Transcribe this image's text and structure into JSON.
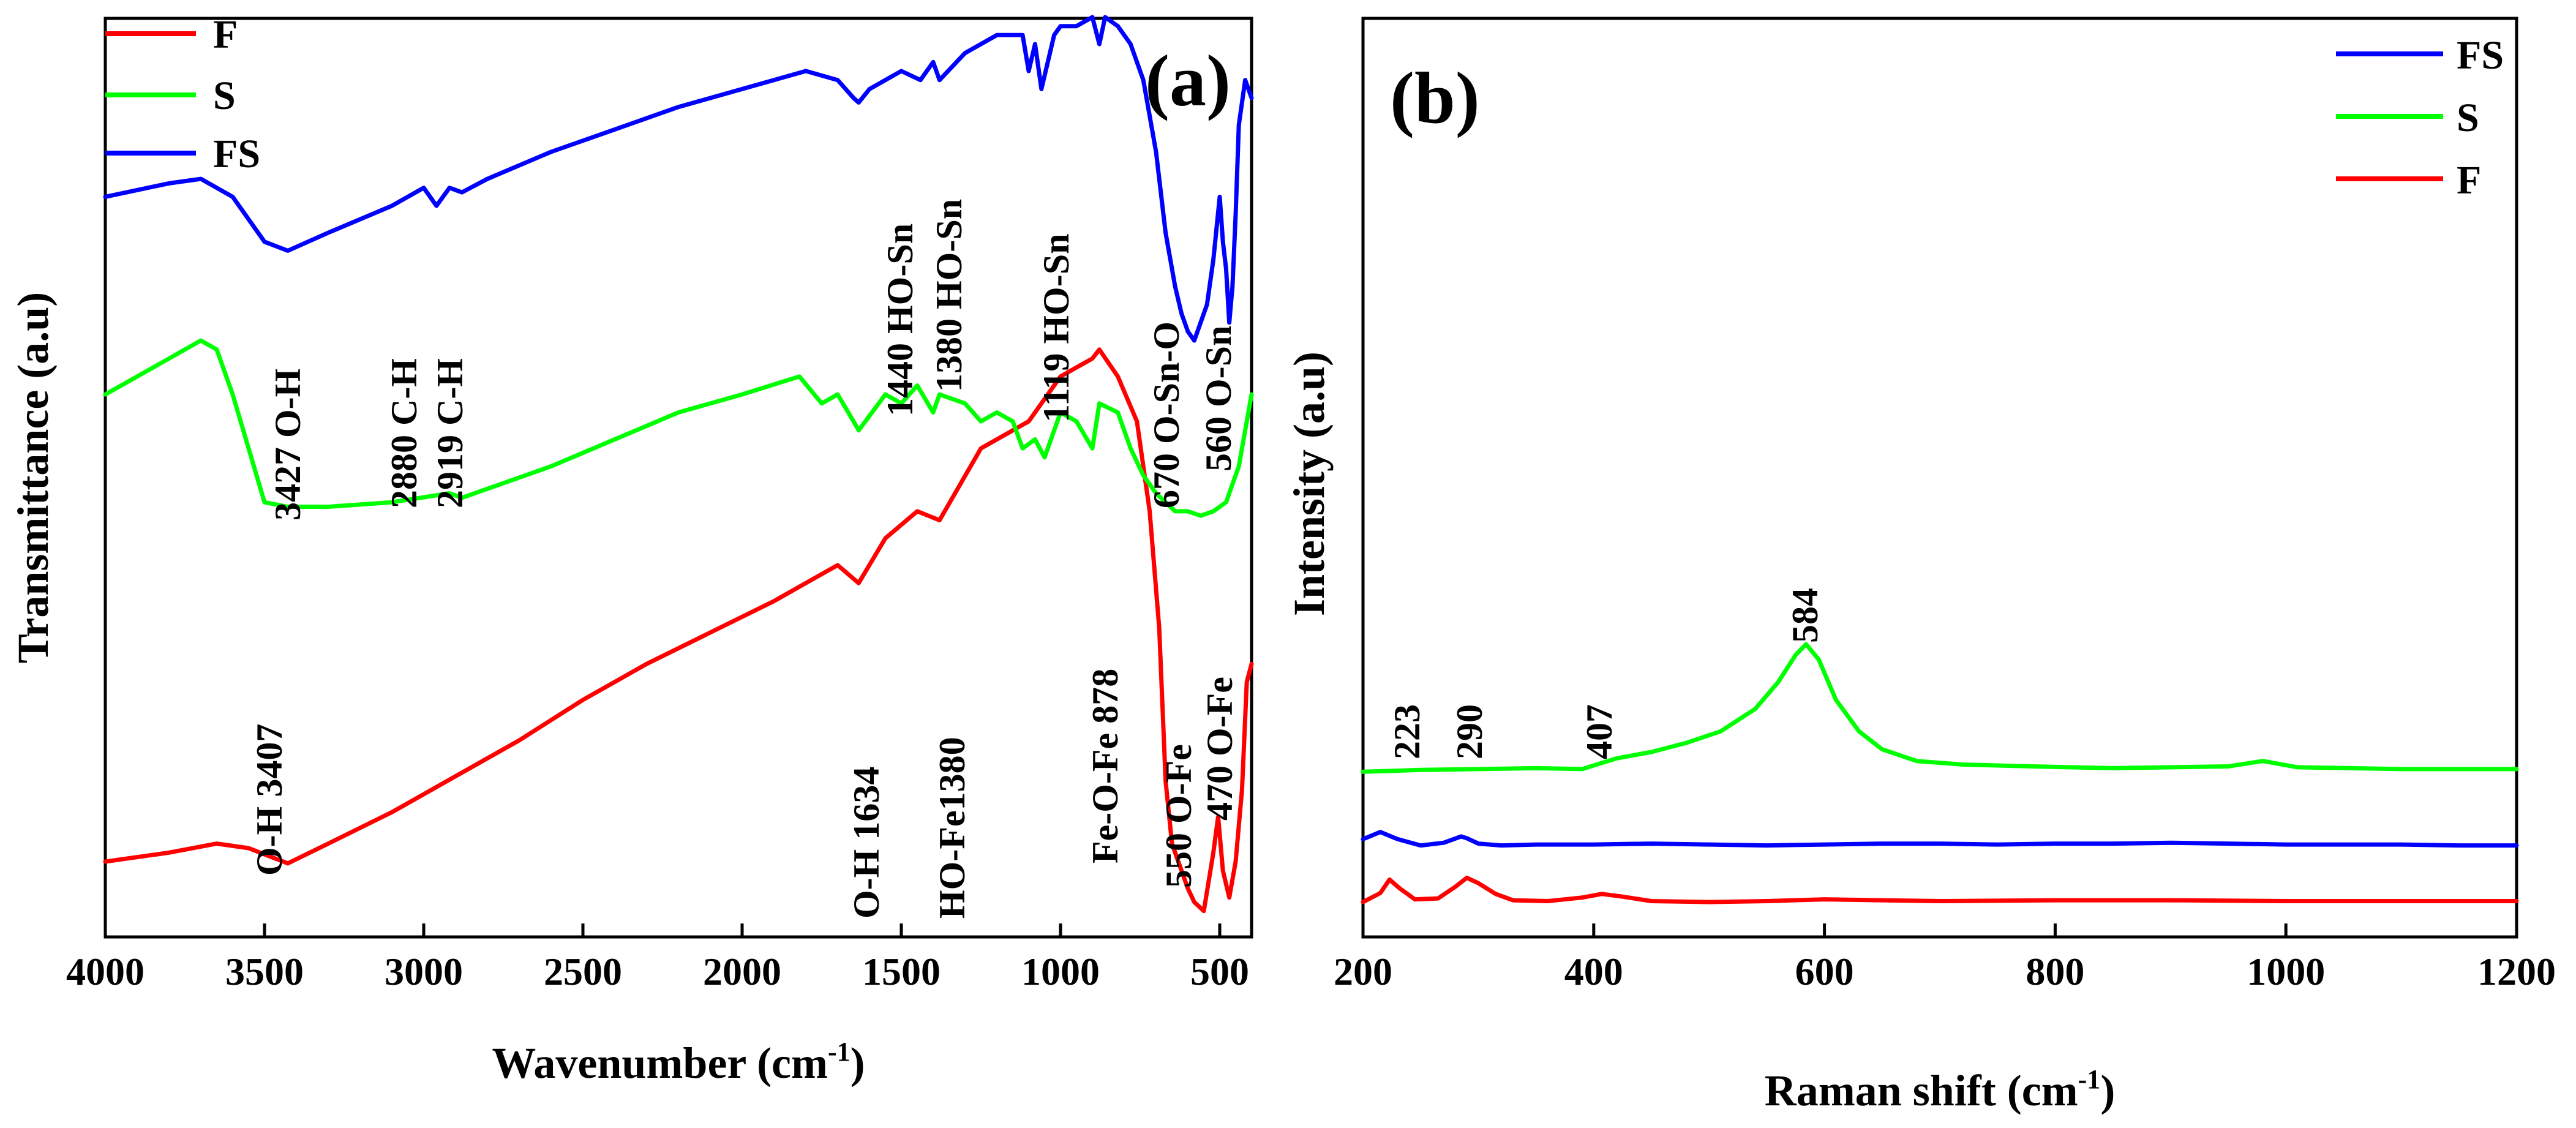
{
  "chart_data": [
    {
      "type": "line",
      "panel_label": "(a)",
      "xlabel": "Wavenumber (cm",
      "xlabel_sup": "-1",
      "xlabel_close": ")",
      "ylabel": "Transmittance (a.u)",
      "xlim": [
        4000,
        400
      ],
      "ylim": [
        0,
        100
      ],
      "x_ticks": [
        4000,
        3500,
        3000,
        2500,
        2000,
        1500,
        1000,
        500
      ],
      "legend": [
        "F",
        "S",
        "FS"
      ],
      "legend_position": "top-left",
      "series": [
        {
          "name": "F",
          "color": "#ff0000",
          "x": [
            4000,
            3800,
            3650,
            3550,
            3427,
            3300,
            3100,
            2900,
            2700,
            2500,
            2300,
            2100,
            1900,
            1750,
            1700,
            1634,
            1550,
            1450,
            1380,
            1250,
            1100,
            1000,
            950,
            900,
            878,
            820,
            760,
            720,
            690,
            670,
            650,
            620,
            600,
            580,
            550,
            520,
            505,
            490,
            470,
            450,
            430,
            415,
            400
          ],
          "y": [
            6,
            7,
            8,
            7.5,
            5.8,
            8,
            11.5,
            15.5,
            19.5,
            24,
            28,
            31.5,
            35,
            38,
            39,
            37,
            42,
            45,
            44,
            52,
            55,
            60,
            61,
            62,
            63,
            60,
            55,
            45,
            32,
            15,
            8,
            5,
            3,
            1.5,
            0.5,
            7,
            11,
            5,
            2,
            6,
            14,
            26,
            28
          ]
        },
        {
          "name": "S",
          "color": "#00ff00",
          "x": [
            4000,
            3800,
            3700,
            3650,
            3600,
            3500,
            3427,
            3300,
            3100,
            2919,
            2880,
            2800,
            2600,
            2400,
            2200,
            2000,
            1820,
            1750,
            1700,
            1650,
            1634,
            1550,
            1500,
            1450,
            1400,
            1380,
            1300,
            1250,
            1200,
            1150,
            1119,
            1080,
            1050,
            1000,
            950,
            900,
            878,
            820,
            780,
            740,
            700,
            670,
            640,
            600,
            560,
            520,
            480,
            440,
            400
          ],
          "y": [
            58,
            62,
            64,
            63,
            58,
            46,
            45.5,
            45.5,
            46,
            47,
            46.5,
            47.5,
            50,
            53,
            56,
            58,
            60,
            57,
            58,
            55,
            54,
            58,
            57,
            59,
            56,
            58,
            57,
            55,
            56,
            55,
            52,
            53,
            51,
            56,
            55,
            52,
            57,
            56,
            52,
            49,
            47,
            46,
            45,
            45,
            44.5,
            45,
            46,
            50,
            58
          ]
        },
        {
          "name": "FS",
          "color": "#0000ff",
          "x": [
            4000,
            3800,
            3700,
            3600,
            3500,
            3427,
            3300,
            3100,
            3000,
            2960,
            2919,
            2880,
            2800,
            2600,
            2400,
            2200,
            2000,
            1800,
            1700,
            1650,
            1634,
            1600,
            1500,
            1440,
            1400,
            1380,
            1300,
            1200,
            1119,
            1100,
            1080,
            1060,
            1040,
            1020,
            1000,
            950,
            900,
            878,
            860,
            820,
            780,
            740,
            700,
            670,
            640,
            620,
            600,
            580,
            560,
            540,
            520,
            500,
            490,
            480,
            470,
            460,
            450,
            440,
            420,
            400
          ],
          "y": [
            80,
            81.5,
            82,
            80,
            75,
            74,
            76,
            79,
            81,
            79,
            81,
            80.5,
            82,
            85,
            87.5,
            90,
            92,
            94,
            93,
            91,
            90.5,
            92,
            94,
            93,
            95,
            93,
            96,
            98,
            98,
            94,
            97,
            92,
            95,
            98,
            99,
            99,
            100,
            97,
            100,
            99,
            97,
            93,
            85,
            76,
            70,
            67,
            65,
            64,
            66,
            68,
            73,
            80,
            75,
            72,
            66,
            70,
            78,
            88,
            93,
            91
          ]
        }
      ],
      "annotations": [
        "3427 O-H",
        "2880 C-H",
        "2919 C-H",
        "1440 HO-Sn",
        "1380 HO-Sn",
        "1119 HO-Sn",
        "670 O-Sn-O",
        "560 O-Sn",
        "O-H 3407",
        "O-H 1634",
        "HO-Fe1380",
        "Fe-O-Fe 878",
        "550 O-Fe",
        "470 O-Fe"
      ]
    },
    {
      "type": "line",
      "panel_label": "(b)",
      "xlabel": "Raman shift (cm",
      "xlabel_sup": "-1",
      "xlabel_close": ")",
      "ylabel": "Intensity (a.u)",
      "xlim": [
        200,
        1200
      ],
      "ylim": [
        0,
        100
      ],
      "x_ticks": [
        200,
        400,
        600,
        800,
        1000,
        1200
      ],
      "legend": [
        "FS",
        "S",
        "F"
      ],
      "legend_position": "top-right",
      "series": [
        {
          "name": "FS",
          "color": "#0000ff",
          "x": [
            200,
            215,
            230,
            250,
            270,
            285,
            290,
            300,
            320,
            350,
            400,
            450,
            500,
            550,
            600,
            650,
            700,
            750,
            800,
            850,
            900,
            950,
            1000,
            1050,
            1100,
            1150,
            1200
          ],
          "y": [
            8.5,
            9.3,
            8.5,
            7.8,
            8.1,
            8.8,
            8.6,
            8,
            7.8,
            7.9,
            7.9,
            8,
            7.9,
            7.8,
            7.9,
            8,
            8,
            7.9,
            8,
            8,
            8.1,
            8,
            7.9,
            7.9,
            7.9,
            7.8,
            7.8
          ]
        },
        {
          "name": "S",
          "color": "#00ff00",
          "x": [
            200,
            250,
            300,
            350,
            390,
            420,
            450,
            480,
            510,
            540,
            560,
            575,
            584,
            595,
            610,
            630,
            650,
            680,
            720,
            780,
            850,
            950,
            980,
            1010,
            1100,
            1200
          ],
          "y": [
            16,
            16.2,
            16.3,
            16.4,
            16.3,
            17.5,
            18.2,
            19.2,
            20.5,
            23,
            26,
            29,
            30.2,
            28.5,
            24,
            20.5,
            18.5,
            17.2,
            16.8,
            16.6,
            16.4,
            16.6,
            17.2,
            16.5,
            16.3,
            16.3
          ]
        },
        {
          "name": "F",
          "color": "#ff0000",
          "x": [
            200,
            215,
            223,
            232,
            245,
            265,
            280,
            290,
            300,
            315,
            330,
            360,
            390,
            407,
            425,
            450,
            500,
            550,
            600,
            650,
            700,
            800,
            900,
            1000,
            1100,
            1200
          ],
          "y": [
            1.5,
            2.5,
            4,
            3,
            1.8,
            1.9,
            3.2,
            4.2,
            3.6,
            2.4,
            1.7,
            1.6,
            2,
            2.4,
            2.1,
            1.6,
            1.5,
            1.6,
            1.8,
            1.7,
            1.6,
            1.7,
            1.7,
            1.6,
            1.6,
            1.6
          ]
        }
      ],
      "annotations": [
        "223",
        "290",
        "407",
        "584"
      ]
    }
  ]
}
